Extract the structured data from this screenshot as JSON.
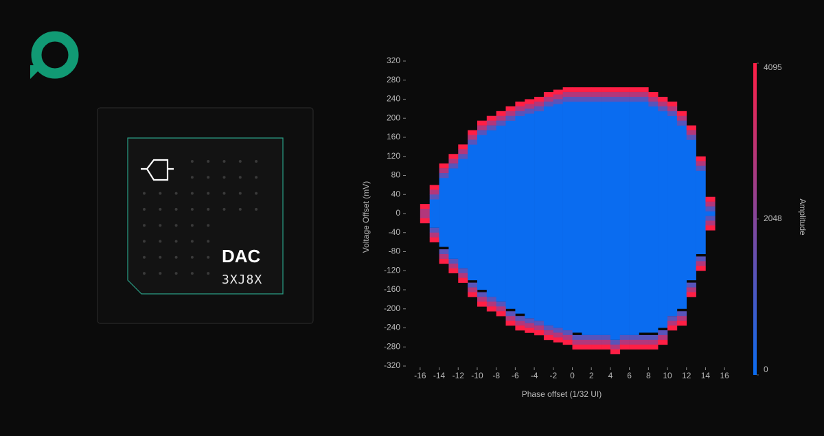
{
  "card": {
    "title": "DAC",
    "code": "3XJ8X"
  },
  "chart_data": {
    "type": "heatmap",
    "x_label": "Phase offset (1/32 UI)",
    "y_label": "Voltage Offset (mV)",
    "colorbar_label": "Amplitude",
    "x": [
      -16,
      -15,
      -14,
      -13,
      -12,
      -11,
      -10,
      -9,
      -8,
      -7,
      -6,
      -5,
      -4,
      -3,
      -2,
      -1,
      0,
      1,
      2,
      3,
      4,
      5,
      6,
      7,
      8,
      9,
      10,
      11,
      12,
      13,
      14
    ],
    "series": [
      {
        "name": "Eye top",
        "values": [
          20,
          60,
          105,
          125,
          145,
          175,
          195,
          205,
          215,
          225,
          235,
          240,
          245,
          255,
          260,
          265,
          265,
          265,
          265,
          265,
          265,
          265,
          265,
          265,
          255,
          245,
          235,
          215,
          185,
          120,
          35
        ]
      },
      {
        "name": "Eye bottom",
        "values": [
          -20,
          -60,
          -100,
          -125,
          -145,
          -170,
          -190,
          -205,
          -215,
          -230,
          -240,
          -250,
          -255,
          -265,
          -270,
          -275,
          -280,
          -285,
          -285,
          -285,
          -295,
          -285,
          -285,
          -280,
          -280,
          -270,
          -245,
          -230,
          -170,
          -115,
          -35
        ]
      }
    ],
    "edge_profile": [
      4095,
      2800,
      1300
    ],
    "zlim": [
      0,
      4095
    ],
    "colormap": [
      "#0a6cf0",
      "#ff1f45"
    ],
    "xlim": [
      -17,
      17
    ],
    "ylim": [
      -330,
      330
    ],
    "xticks": [
      -16,
      -14,
      -12,
      -10,
      -8,
      -6,
      -4,
      -2,
      0,
      2,
      4,
      6,
      8,
      10,
      12,
      14,
      16
    ],
    "yticks": [
      -320,
      -280,
      -240,
      -200,
      -160,
      -120,
      -80,
      -40,
      0,
      40,
      80,
      120,
      160,
      200,
      240,
      280,
      320
    ],
    "zticks": [
      0,
      2048,
      4095
    ]
  }
}
